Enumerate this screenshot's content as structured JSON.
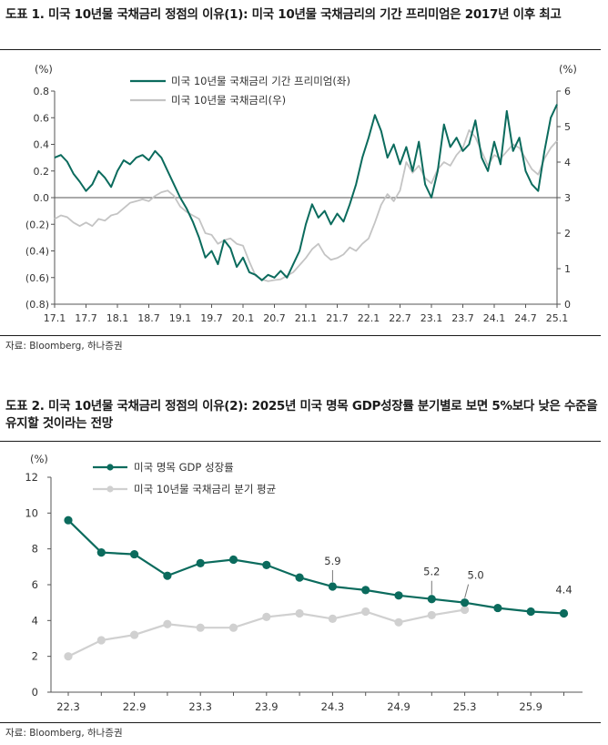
{
  "figure1": {
    "title": "도표 1. 미국 10년물 국채금리 정점의 이유(1): 미국 10년물 국채금리의 기간 프리미엄은 2017년 이후 최고",
    "source": "자료: Bloomberg, 하나증권",
    "chart_data": {
      "type": "line",
      "y_unit_left": "(%)",
      "y_unit_right": "(%)",
      "ylim_left": [
        -0.8,
        0.8
      ],
      "ylim_right": [
        0,
        6
      ],
      "yticks_left": [
        "0.8",
        "0.6",
        "0.4",
        "0.2",
        "0.0",
        "(0.2)",
        "(0.4)",
        "(0.6)",
        "(0.8)"
      ],
      "yticks_right": [
        "6",
        "5",
        "4",
        "3",
        "2",
        "1",
        "0"
      ],
      "xticks": [
        "17.1",
        "17.7",
        "18.1",
        "18.7",
        "19.1",
        "19.7",
        "20.1",
        "20.7",
        "21.1",
        "21.7",
        "22.1",
        "22.7",
        "23.1",
        "23.7",
        "24.1",
        "24.7",
        "25.1"
      ],
      "xlim": [
        0,
        16
      ],
      "legend_position": "top-left",
      "grid": false,
      "series": [
        {
          "name": "미국 10년물 국채금리 기간 프리미엄(좌)",
          "axis": "left",
          "color": "#0b6b5d",
          "x": [
            0,
            0.2,
            0.4,
            0.6,
            0.8,
            1.0,
            1.2,
            1.4,
            1.6,
            1.8,
            2.0,
            2.2,
            2.4,
            2.6,
            2.8,
            3.0,
            3.2,
            3.4,
            3.6,
            3.8,
            4.0,
            4.2,
            4.4,
            4.6,
            4.8,
            5.0,
            5.2,
            5.4,
            5.6,
            5.8,
            6.0,
            6.2,
            6.4,
            6.6,
            6.8,
            7.0,
            7.2,
            7.4,
            7.6,
            7.8,
            8.0,
            8.2,
            8.4,
            8.6,
            8.8,
            9.0,
            9.2,
            9.4,
            9.6,
            9.8,
            10.0,
            10.2,
            10.4,
            10.6,
            10.8,
            11.0,
            11.2,
            11.4,
            11.6,
            11.8,
            12.0,
            12.2,
            12.4,
            12.6,
            12.8,
            13.0,
            13.2,
            13.4,
            13.6,
            13.8,
            14.0,
            14.2,
            14.4,
            14.6,
            14.8,
            15.0,
            15.2,
            15.4,
            15.6,
            15.8,
            16.0
          ],
          "values": [
            0.3,
            0.32,
            0.27,
            0.18,
            0.12,
            0.05,
            0.1,
            0.2,
            0.15,
            0.08,
            0.2,
            0.28,
            0.25,
            0.3,
            0.32,
            0.28,
            0.35,
            0.3,
            0.2,
            0.1,
            0.0,
            -0.08,
            -0.18,
            -0.3,
            -0.45,
            -0.4,
            -0.5,
            -0.32,
            -0.38,
            -0.52,
            -0.45,
            -0.56,
            -0.58,
            -0.62,
            -0.58,
            -0.6,
            -0.55,
            -0.6,
            -0.5,
            -0.4,
            -0.2,
            -0.05,
            -0.15,
            -0.1,
            -0.2,
            -0.12,
            -0.18,
            -0.05,
            0.1,
            0.3,
            0.45,
            0.62,
            0.5,
            0.3,
            0.4,
            0.25,
            0.38,
            0.2,
            0.42,
            0.1,
            0.0,
            0.2,
            0.55,
            0.38,
            0.45,
            0.35,
            0.4,
            0.58,
            0.3,
            0.2,
            0.42,
            0.25,
            0.65,
            0.35,
            0.45,
            0.2,
            0.1,
            0.05,
            0.35,
            0.6,
            0.7
          ]
        },
        {
          "name": "미국 10년물 국채금리(우)",
          "axis": "right",
          "color": "#c4c4c4",
          "x": [
            0,
            0.2,
            0.4,
            0.6,
            0.8,
            1.0,
            1.2,
            1.4,
            1.6,
            1.8,
            2.0,
            2.2,
            2.4,
            2.6,
            2.8,
            3.0,
            3.2,
            3.4,
            3.6,
            3.8,
            4.0,
            4.2,
            4.4,
            4.6,
            4.8,
            5.0,
            5.2,
            5.4,
            5.6,
            5.8,
            6.0,
            6.2,
            6.4,
            6.6,
            6.8,
            7.0,
            7.2,
            7.4,
            7.6,
            7.8,
            8.0,
            8.2,
            8.4,
            8.6,
            8.8,
            9.0,
            9.2,
            9.4,
            9.6,
            9.8,
            10.0,
            10.2,
            10.4,
            10.6,
            10.8,
            11.0,
            11.2,
            11.4,
            11.6,
            11.8,
            12.0,
            12.2,
            12.4,
            12.6,
            12.8,
            13.0,
            13.2,
            13.4,
            13.6,
            13.8,
            14.0,
            14.2,
            14.4,
            14.6,
            14.8,
            15.0,
            15.2,
            15.4,
            15.6,
            15.8,
            16.0
          ],
          "values": [
            2.4,
            2.5,
            2.45,
            2.3,
            2.2,
            2.3,
            2.2,
            2.4,
            2.35,
            2.5,
            2.55,
            2.7,
            2.85,
            2.9,
            2.95,
            2.9,
            3.05,
            3.15,
            3.2,
            3.05,
            2.75,
            2.6,
            2.5,
            2.4,
            2.0,
            1.95,
            1.7,
            1.8,
            1.85,
            1.7,
            1.65,
            1.2,
            0.8,
            0.7,
            0.65,
            0.68,
            0.7,
            0.8,
            0.9,
            1.1,
            1.3,
            1.55,
            1.7,
            1.4,
            1.25,
            1.3,
            1.4,
            1.6,
            1.5,
            1.7,
            1.85,
            2.3,
            2.8,
            3.1,
            2.9,
            3.2,
            4.0,
            3.7,
            3.9,
            3.55,
            3.4,
            3.8,
            4.0,
            3.9,
            4.2,
            4.4,
            4.9,
            4.7,
            4.3,
            3.9,
            4.2,
            4.1,
            4.3,
            4.5,
            4.4,
            4.1,
            3.8,
            3.65,
            4.1,
            4.4,
            4.6
          ]
        }
      ]
    }
  },
  "figure2": {
    "title": "도표 2. 미국 10년물 국채금리 정점의 이유(2): 2025년 미국 명목 GDP성장률 분기별로 보면 5%보다 낮은 수준을 유지할 것이라는 전망",
    "source": "자료: Bloomberg, 하나증권",
    "chart_data": {
      "type": "line",
      "y_unit": "(%)",
      "ylim": [
        0,
        12
      ],
      "yticks": [
        "12",
        "10",
        "8",
        "6",
        "4",
        "2",
        "0"
      ],
      "categories": [
        "22.3",
        "22.6",
        "22.9",
        "22.12",
        "23.3",
        "23.6",
        "23.9",
        "23.12",
        "24.3",
        "24.6",
        "24.9",
        "24.12",
        "25.3",
        "25.6",
        "25.9",
        "25.12"
      ],
      "xtick_labels": [
        "22.3",
        "22.9",
        "23.3",
        "23.9",
        "24.3",
        "24.9",
        "25.3",
        "25.9"
      ],
      "legend_position": "top-left",
      "grid": false,
      "series": [
        {
          "name": "미국 명목 GDP 성장률",
          "color": "#0b6b5d",
          "values": [
            9.6,
            7.8,
            7.7,
            6.5,
            7.2,
            7.4,
            7.1,
            6.4,
            5.9,
            5.7,
            5.4,
            5.2,
            5.0,
            4.7,
            4.5,
            4.4
          ]
        },
        {
          "name": "미국 10년물 국채금리 분기 평균",
          "color": "#d0d0d0",
          "values": [
            2.0,
            2.9,
            3.2,
            3.8,
            3.6,
            3.6,
            4.2,
            4.4,
            4.1,
            4.5,
            3.9,
            4.3,
            4.6,
            null,
            null,
            null
          ]
        }
      ],
      "annotations": [
        {
          "index": 8,
          "label": "5.9"
        },
        {
          "index": 11,
          "label": "5.2"
        },
        {
          "index": 12,
          "label": "5.0"
        },
        {
          "index": 15,
          "label": "4.4"
        }
      ]
    }
  }
}
